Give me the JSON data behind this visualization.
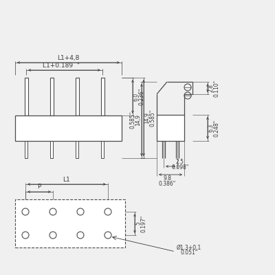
{
  "bg_color": "#f0f0f0",
  "line_color": "#4a4a4a",
  "dim_color": "#3a3a3a",
  "font_size_small": 5.5,
  "font_size_medium": 6.5,
  "dimensions": {
    "L1_plus_4_8": "L1+4,8",
    "L1_plus_0_189": "L1+0.189  \"",
    "6_0": "6.0",
    "0_236": "0.236\"",
    "14_9": "14,9",
    "0_585": "0.585\"",
    "2_8": "2.8",
    "0_110": "0.110\"",
    "6_3": "6.3",
    "0_248": "0.248\"",
    "2_5": "2.5",
    "0_098": "0.098\"",
    "9_8": "9.8",
    "0_386": "0.386\"",
    "L1": "L1",
    "P": "P",
    "5": "5",
    "0_197": "0.197\"",
    "dia": "Ø1,3+0,1",
    "0_051": "0.051\""
  }
}
